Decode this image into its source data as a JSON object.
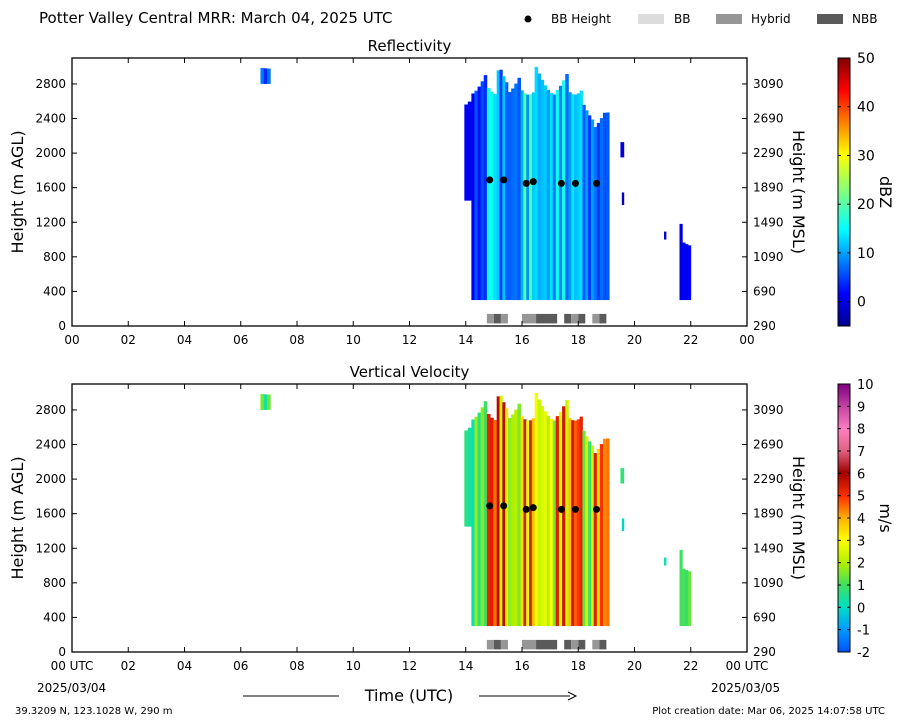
{
  "header": {
    "title": "Potter Valley Central MRR:  March 04, 2025 UTC",
    "legend": [
      {
        "label": "BB Height",
        "kind": "dot",
        "color": "#000000"
      },
      {
        "label": "BB",
        "kind": "box",
        "color": "#dcdcdc"
      },
      {
        "label": "Hybrid",
        "kind": "box",
        "color": "#969696"
      },
      {
        "label": "NBB",
        "kind": "box",
        "color": "#5a5a5a"
      }
    ]
  },
  "footer": {
    "location": "39.3209 N, 123.1028 W, 290 m",
    "created": "Plot creation date: Mar 06, 2025 14:07:58 UTC",
    "start_label": "00 UTC",
    "start_date": "2025/03/04",
    "end_label": "00 UTC",
    "end_date": "2025/03/05",
    "xlabel": "Time (UTC)"
  },
  "chart_data": [
    {
      "type": "heatmap",
      "title": "Reflectivity",
      "ylabel": "Height (m AGL)",
      "ylabel_right": "Height (m MSL)",
      "xlim": [
        0,
        24
      ],
      "ylim": [
        0,
        3100
      ],
      "x_ticks": [
        "00",
        "02",
        "04",
        "06",
        "08",
        "10",
        "12",
        "14",
        "16",
        "18",
        "20",
        "22",
        "00"
      ],
      "y_ticks": [
        0,
        400,
        800,
        1200,
        1600,
        2000,
        2400,
        2800
      ],
      "y_ticks_right": [
        290,
        690,
        1090,
        1490,
        1890,
        2290,
        2690,
        3090
      ],
      "colorbar": {
        "label": "dBZ",
        "range": [
          -5,
          50
        ],
        "ticks": [
          "0",
          "10",
          "20",
          "30",
          "40",
          "50"
        ],
        "colormap": "jet"
      },
      "bb_height": [
        {
          "time": 14.85,
          "height": 1690
        },
        {
          "time": 15.35,
          "height": 1690
        },
        {
          "time": 16.15,
          "height": 1650
        },
        {
          "time": 16.4,
          "height": 1670
        },
        {
          "time": 17.4,
          "height": 1650
        },
        {
          "time": 17.9,
          "height": 1650
        },
        {
          "time": 18.65,
          "height": 1650
        }
      ],
      "bb_type_segments": [
        {
          "start": 14.75,
          "end": 15.0,
          "type": "Hybrid"
        },
        {
          "start": 15.0,
          "end": 15.25,
          "type": "NBB"
        },
        {
          "start": 15.25,
          "end": 15.5,
          "type": "Hybrid"
        },
        {
          "start": 16.0,
          "end": 16.5,
          "type": "Hybrid"
        },
        {
          "start": 16.5,
          "end": 17.25,
          "type": "NBB"
        },
        {
          "start": 17.5,
          "end": 17.75,
          "type": "NBB"
        },
        {
          "start": 17.75,
          "end": 18.0,
          "type": "Hybrid"
        },
        {
          "start": 18.0,
          "end": 18.25,
          "type": "NBB"
        },
        {
          "start": 18.5,
          "end": 18.75,
          "type": "Hybrid"
        },
        {
          "start": 18.75,
          "end": 19.0,
          "type": "NBB"
        }
      ],
      "echo_regions": [
        {
          "t0": 6.7,
          "t1": 7.05,
          "h0": 2800,
          "h1": 3000,
          "core": 8
        },
        {
          "t0": 13.95,
          "t1": 14.2,
          "h0": 1450,
          "h1": 2600,
          "core": 2
        },
        {
          "t0": 14.2,
          "t1": 14.75,
          "h0": 300,
          "h1": 3000,
          "core": 6
        },
        {
          "t0": 14.75,
          "t1": 15.1,
          "h0": 300,
          "h1": 3000,
          "core": 18
        },
        {
          "t0": 15.1,
          "t1": 15.5,
          "h0": 300,
          "h1": 3000,
          "core": 12
        },
        {
          "t0": 15.5,
          "t1": 15.95,
          "h0": 300,
          "h1": 3000,
          "core": 9
        },
        {
          "t0": 15.95,
          "t1": 16.45,
          "h0": 300,
          "h1": 3000,
          "core": 20
        },
        {
          "t0": 16.45,
          "t1": 17.2,
          "h0": 300,
          "h1": 3000,
          "core": 14
        },
        {
          "t0": 17.2,
          "t1": 17.65,
          "h0": 300,
          "h1": 3000,
          "core": 16
        },
        {
          "t0": 17.65,
          "t1": 18.15,
          "h0": 300,
          "h1": 3000,
          "core": 15
        },
        {
          "t0": 18.15,
          "t1": 18.55,
          "h0": 300,
          "h1": 2600,
          "core": 10
        },
        {
          "t0": 18.55,
          "t1": 19.1,
          "h0": 300,
          "h1": 2500,
          "core": 8
        },
        {
          "t0": 19.5,
          "t1": 19.62,
          "h0": 1950,
          "h1": 2150,
          "core": 0
        },
        {
          "t0": 19.55,
          "t1": 19.62,
          "h0": 1400,
          "h1": 1550,
          "core": 0
        },
        {
          "t0": 21.05,
          "t1": 21.12,
          "h0": 1000,
          "h1": 1100,
          "core": 0
        },
        {
          "t0": 21.6,
          "t1": 21.7,
          "h0": 300,
          "h1": 1300,
          "core": 0
        },
        {
          "t0": 21.7,
          "t1": 22.0,
          "h0": 300,
          "h1": 1000,
          "core": 2
        }
      ]
    },
    {
      "type": "heatmap",
      "title": "Vertical Velocity",
      "ylabel": "Height (m AGL)",
      "ylabel_right": "Height (m MSL)",
      "xlim": [
        0,
        24
      ],
      "ylim": [
        0,
        3100
      ],
      "x_ticks": [
        "00 UTC",
        "02",
        "04",
        "06",
        "08",
        "10",
        "12",
        "14",
        "16",
        "18",
        "20",
        "22",
        "00 UTC"
      ],
      "y_ticks": [
        0,
        400,
        800,
        1200,
        1600,
        2000,
        2400,
        2800
      ],
      "y_ticks_right": [
        290,
        690,
        1090,
        1490,
        1890,
        2290,
        2690,
        3090
      ],
      "colorbar": {
        "label": "m/s",
        "range": [
          -2,
          10
        ],
        "ticks": [
          "-2",
          "-1",
          "0",
          "1",
          "2",
          "3",
          "4",
          "5",
          "6",
          "7",
          "8",
          "9",
          "10"
        ],
        "colormap": "velocity"
      },
      "bb_height": [
        {
          "time": 14.85,
          "height": 1690
        },
        {
          "time": 15.35,
          "height": 1690
        },
        {
          "time": 16.15,
          "height": 1650
        },
        {
          "time": 16.4,
          "height": 1670
        },
        {
          "time": 17.4,
          "height": 1650
        },
        {
          "time": 17.9,
          "height": 1650
        },
        {
          "time": 18.65,
          "height": 1650
        }
      ],
      "bb_type_segments": [
        {
          "start": 14.75,
          "end": 15.0,
          "type": "Hybrid"
        },
        {
          "start": 15.0,
          "end": 15.25,
          "type": "NBB"
        },
        {
          "start": 15.25,
          "end": 15.5,
          "type": "Hybrid"
        },
        {
          "start": 16.0,
          "end": 16.5,
          "type": "Hybrid"
        },
        {
          "start": 16.5,
          "end": 17.25,
          "type": "NBB"
        },
        {
          "start": 17.5,
          "end": 17.75,
          "type": "NBB"
        },
        {
          "start": 17.75,
          "end": 18.0,
          "type": "Hybrid"
        },
        {
          "start": 18.0,
          "end": 18.25,
          "type": "NBB"
        },
        {
          "start": 18.5,
          "end": 18.75,
          "type": "Hybrid"
        },
        {
          "start": 18.75,
          "end": 19.0,
          "type": "NBB"
        }
      ],
      "echo_regions": [
        {
          "t0": 6.7,
          "t1": 7.05,
          "h0": 2800,
          "h1": 3000,
          "core": 1.5
        },
        {
          "t0": 13.95,
          "t1": 14.2,
          "h0": 1450,
          "h1": 2600,
          "core": 1
        },
        {
          "t0": 14.2,
          "t1": 14.75,
          "h0": 300,
          "h1": 3000,
          "core": 1.8
        },
        {
          "t0": 14.75,
          "t1": 15.1,
          "h0": 300,
          "h1": 3000,
          "core": 6.2
        },
        {
          "t0": 15.1,
          "t1": 15.5,
          "h0": 300,
          "h1": 3000,
          "core": 5.8
        },
        {
          "t0": 15.5,
          "t1": 15.95,
          "h0": 300,
          "h1": 3000,
          "core": 2.5
        },
        {
          "t0": 15.95,
          "t1": 16.45,
          "h0": 300,
          "h1": 3000,
          "core": 6.5
        },
        {
          "t0": 16.45,
          "t1": 17.2,
          "h0": 300,
          "h1": 3000,
          "core": 3.2
        },
        {
          "t0": 17.2,
          "t1": 17.65,
          "h0": 300,
          "h1": 3000,
          "core": 5.5
        },
        {
          "t0": 17.65,
          "t1": 18.15,
          "h0": 300,
          "h1": 3000,
          "core": 6
        },
        {
          "t0": 18.15,
          "t1": 18.55,
          "h0": 300,
          "h1": 2600,
          "core": 2.5
        },
        {
          "t0": 18.55,
          "t1": 19.1,
          "h0": 300,
          "h1": 2500,
          "core": 5.5
        },
        {
          "t0": 19.5,
          "t1": 19.62,
          "h0": 1950,
          "h1": 2150,
          "core": 1
        },
        {
          "t0": 19.55,
          "t1": 19.62,
          "h0": 1400,
          "h1": 1550,
          "core": 1
        },
        {
          "t0": 21.05,
          "t1": 21.12,
          "h0": 1000,
          "h1": 1100,
          "core": 0.5
        },
        {
          "t0": 21.6,
          "t1": 21.7,
          "h0": 300,
          "h1": 1300,
          "core": 1
        },
        {
          "t0": 21.7,
          "t1": 22.0,
          "h0": 300,
          "h1": 1000,
          "core": 1.5
        }
      ]
    }
  ]
}
